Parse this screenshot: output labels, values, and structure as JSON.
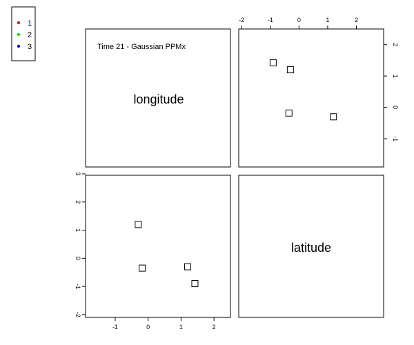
{
  "figure": {
    "title": "Time 21 - Gaussian PPMx",
    "diag_label_1": "longitude",
    "diag_label_2": "latitude"
  },
  "legend": {
    "entries": [
      {
        "label": "1",
        "color": "#ff0000"
      },
      {
        "label": "2",
        "color": "#00e600"
      },
      {
        "label": "3",
        "color": "#0000ff"
      }
    ]
  },
  "chart_data": {
    "type": "scatter",
    "title": "Time 21 - Gaussian PPMx",
    "panel_top_right": {
      "x_variable": "latitude",
      "y_variable": "longitude",
      "x_ticks": [
        -2,
        -1,
        0,
        1,
        2
      ],
      "y_ticks": [
        -1,
        0,
        1,
        2
      ],
      "x_tick_labels": [
        "-2",
        "-1",
        "0",
        "1",
        "2"
      ],
      "y_tick_labels": [
        "-1",
        "0",
        "1",
        "2"
      ],
      "xlim": [
        -2.1,
        2.95
      ],
      "ylim": [
        -1.9,
        2.5
      ]
    },
    "panel_bottom_left": {
      "x_variable": "longitude",
      "y_variable": "latitude",
      "x_ticks": [
        -1,
        0,
        1,
        2
      ],
      "y_ticks": [
        -2,
        -1,
        0,
        1,
        2,
        3
      ],
      "x_tick_labels": [
        "-1",
        "0",
        "1",
        "2"
      ],
      "y_tick_labels": [
        "-2",
        "-1",
        "0",
        "1",
        "2",
        "3"
      ],
      "xlim": [
        -1.9,
        2.5
      ],
      "ylim": [
        -2.1,
        2.95
      ]
    },
    "centers": [
      {
        "cluster": "1",
        "longitude": 1.42,
        "latitude": -0.9
      },
      {
        "cluster": "1",
        "longitude": 1.2,
        "latitude": -0.3
      },
      {
        "cluster": "2",
        "longitude": -0.18,
        "latitude": -0.35
      },
      {
        "cluster": "3",
        "longitude": -0.3,
        "latitude": 1.2
      }
    ],
    "series": [
      {
        "name": "1",
        "color": "#ff0000",
        "points": [
          {
            "c": 0,
            "longitude": 1.42,
            "latitude": -0.9,
            "x": 1.42,
            "y": -0.9
          },
          {
            "c": 0,
            "longitude": 1.42,
            "latitude": -0.9,
            "x": 1.42,
            "y": -0.9
          }
        ]
      }
    ]
  }
}
